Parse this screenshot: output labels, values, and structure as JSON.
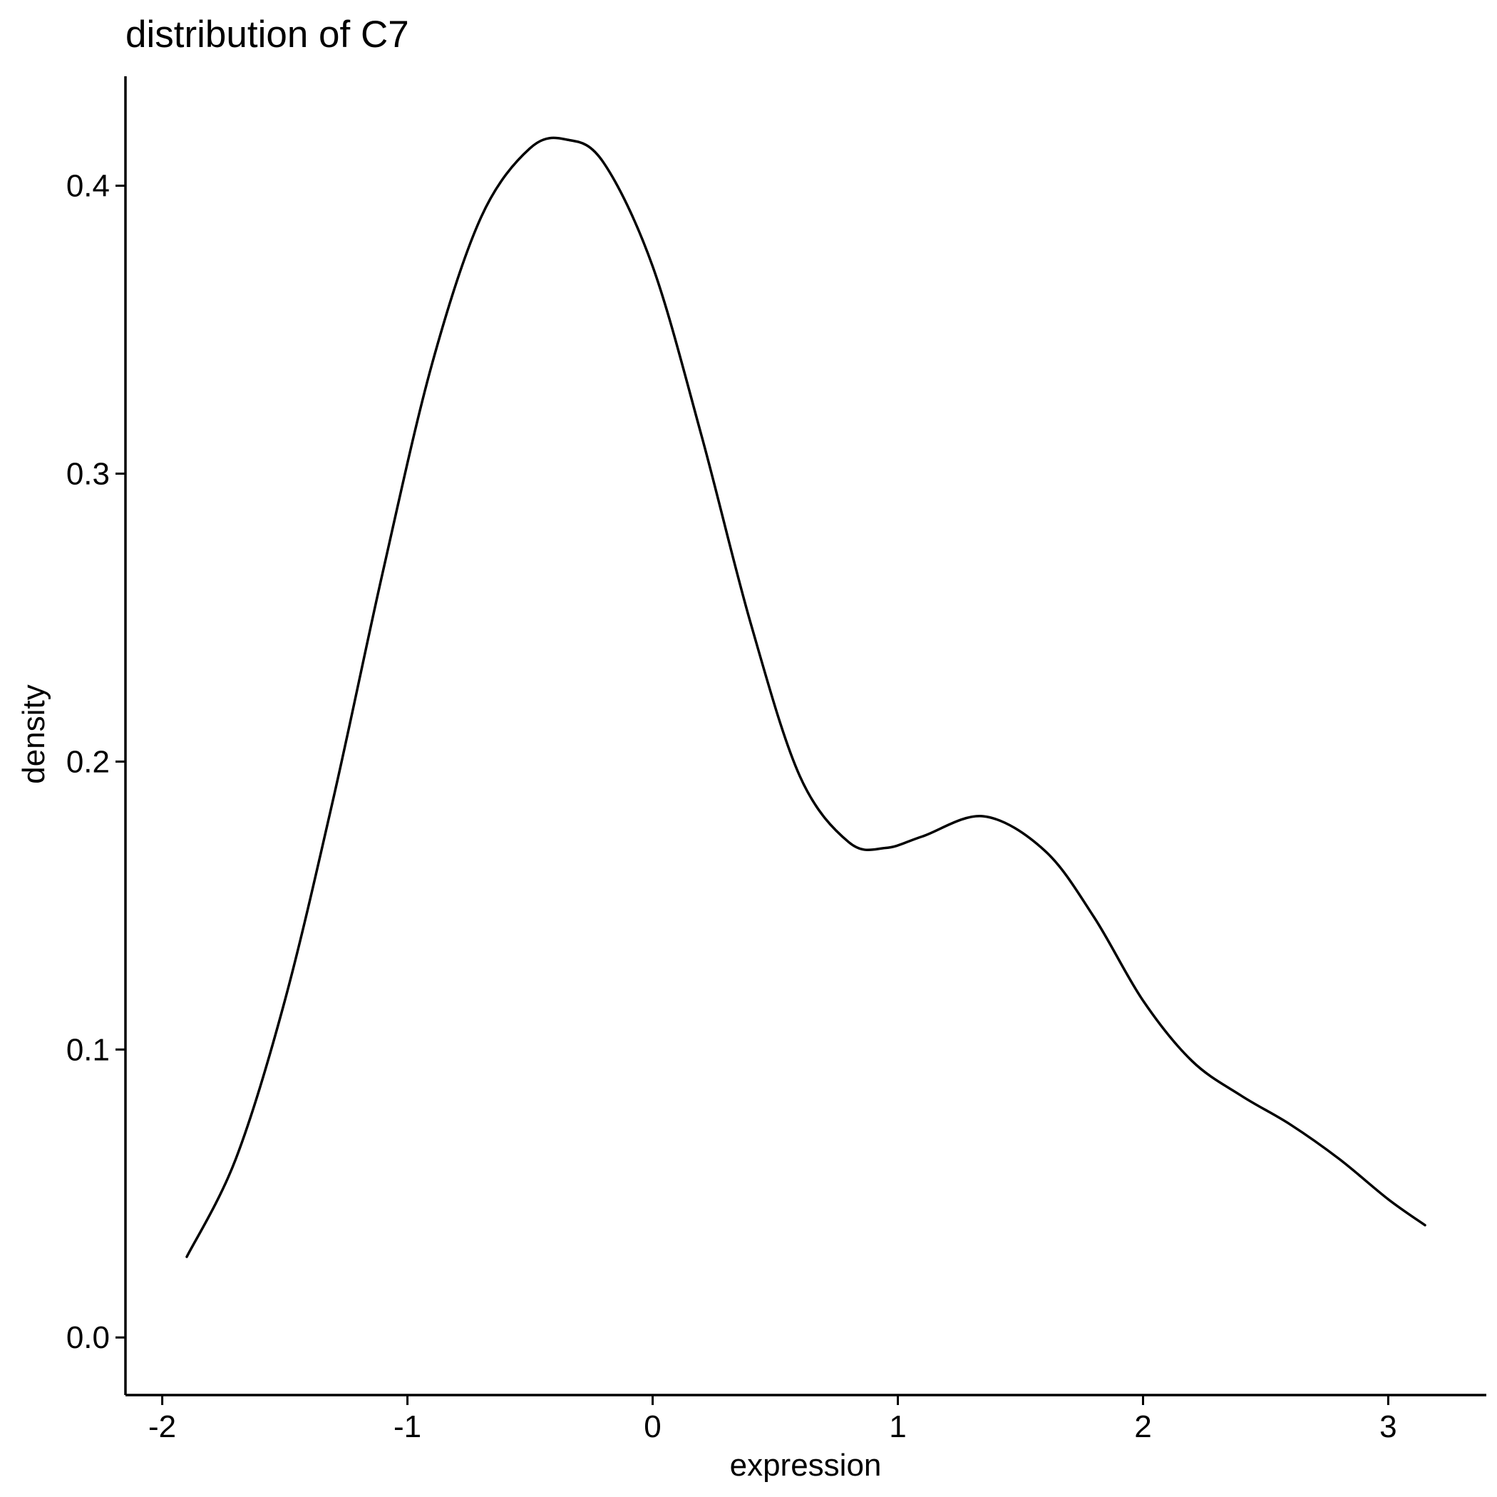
{
  "chart_data": {
    "type": "line",
    "title": "distribution of C7",
    "xlabel": "expression",
    "ylabel": "density",
    "xlim": [
      -2.15,
      3.4
    ],
    "ylim": [
      -0.02,
      0.438
    ],
    "x_ticks": [
      {
        "value": -2,
        "label": "-2"
      },
      {
        "value": -1,
        "label": "-1"
      },
      {
        "value": 0,
        "label": "0"
      },
      {
        "value": 1,
        "label": "1"
      },
      {
        "value": 2,
        "label": "2"
      },
      {
        "value": 3,
        "label": "3"
      }
    ],
    "y_ticks": [
      {
        "value": 0.0,
        "label": "0.0"
      },
      {
        "value": 0.1,
        "label": "0.1"
      },
      {
        "value": 0.2,
        "label": "0.2"
      },
      {
        "value": 0.3,
        "label": "0.3"
      },
      {
        "value": 0.4,
        "label": "0.4"
      }
    ],
    "grid": false,
    "series": [
      {
        "color": "#000000",
        "x": [
          -1.9,
          -1.7,
          -1.5,
          -1.3,
          -1.1,
          -0.9,
          -0.7,
          -0.5,
          -0.35,
          -0.2,
          0.0,
          0.2,
          0.4,
          0.6,
          0.8,
          0.95,
          1.1,
          1.35,
          1.6,
          1.8,
          2.0,
          2.2,
          2.4,
          2.6,
          2.8,
          3.0,
          3.15
        ],
        "y": [
          0.028,
          0.062,
          0.117,
          0.188,
          0.266,
          0.338,
          0.389,
          0.413,
          0.416,
          0.408,
          0.372,
          0.313,
          0.248,
          0.195,
          0.172,
          0.17,
          0.174,
          0.181,
          0.169,
          0.146,
          0.117,
          0.096,
          0.084,
          0.074,
          0.062,
          0.048,
          0.039
        ]
      }
    ]
  }
}
